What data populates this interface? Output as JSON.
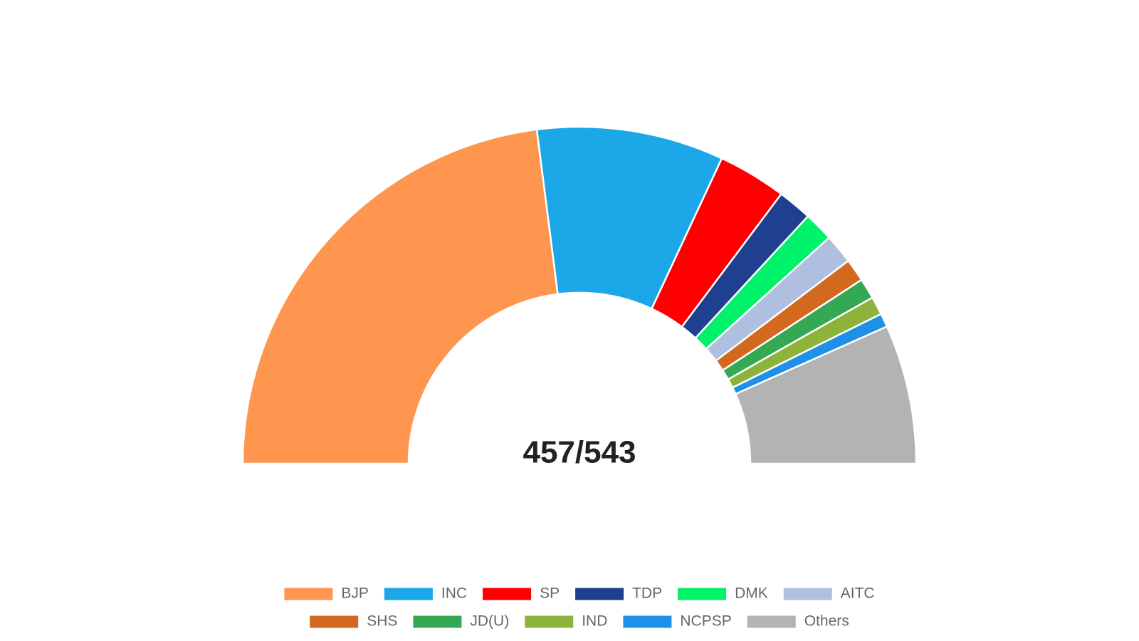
{
  "chart_data": {
    "type": "half-donut",
    "center_label": "457/543",
    "categories": [
      "BJP",
      "INC",
      "SP",
      "TDP",
      "DMK",
      "AITC",
      "SHS",
      "JD(U)",
      "IND",
      "NCPSP",
      "Others"
    ],
    "values": [
      210,
      82,
      30,
      15,
      13,
      13,
      10,
      9,
      8,
      6,
      61
    ],
    "colors": [
      "#ff9650",
      "#1ca8e8",
      "#ff0000",
      "#1f3f8f",
      "#00f26a",
      "#afbfe0",
      "#d2691e",
      "#34a853",
      "#8db33a",
      "#1e90e8",
      "#b3b3b3"
    ],
    "legend": "bottom"
  }
}
